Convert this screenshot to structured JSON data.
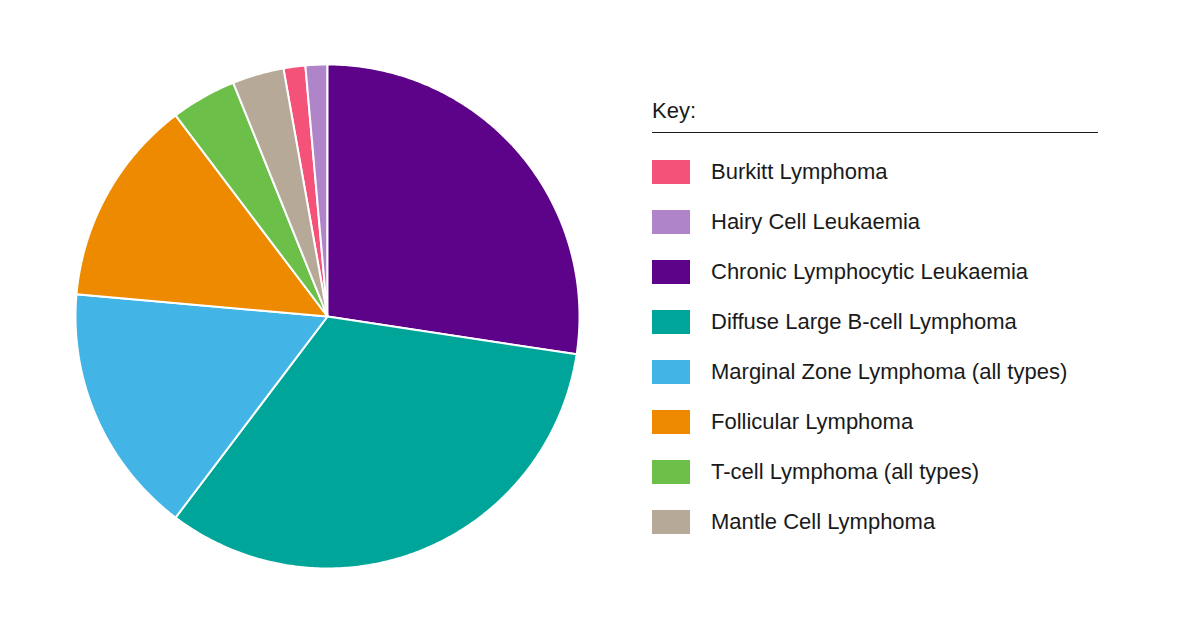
{
  "chart_data": {
    "type": "pie",
    "legend_title": "Key:",
    "legend": "right",
    "categories": [
      "Burkitt Lymphoma",
      "Hairy Cell Leukaemia",
      "Chronic Lymphocytic Leukaemia",
      "Diffuse Large B-cell Lymphoma",
      "Marginal Zone Lymphoma (all types)",
      "Follicular Lymphoma",
      "T-cell Lymphoma (all types)",
      "Mantle Cell Lymphoma"
    ],
    "values": [
      1.4,
      1.4,
      27.4,
      32.9,
      16.1,
      13.3,
      4.2,
      3.3
    ],
    "colors": [
      "#f5527a",
      "#b084c8",
      "#5c0389",
      "#00a59a",
      "#42b5e6",
      "#ee8a00",
      "#6cc04a",
      "#b7a998"
    ],
    "data_labels": false,
    "tick_labels": false
  }
}
